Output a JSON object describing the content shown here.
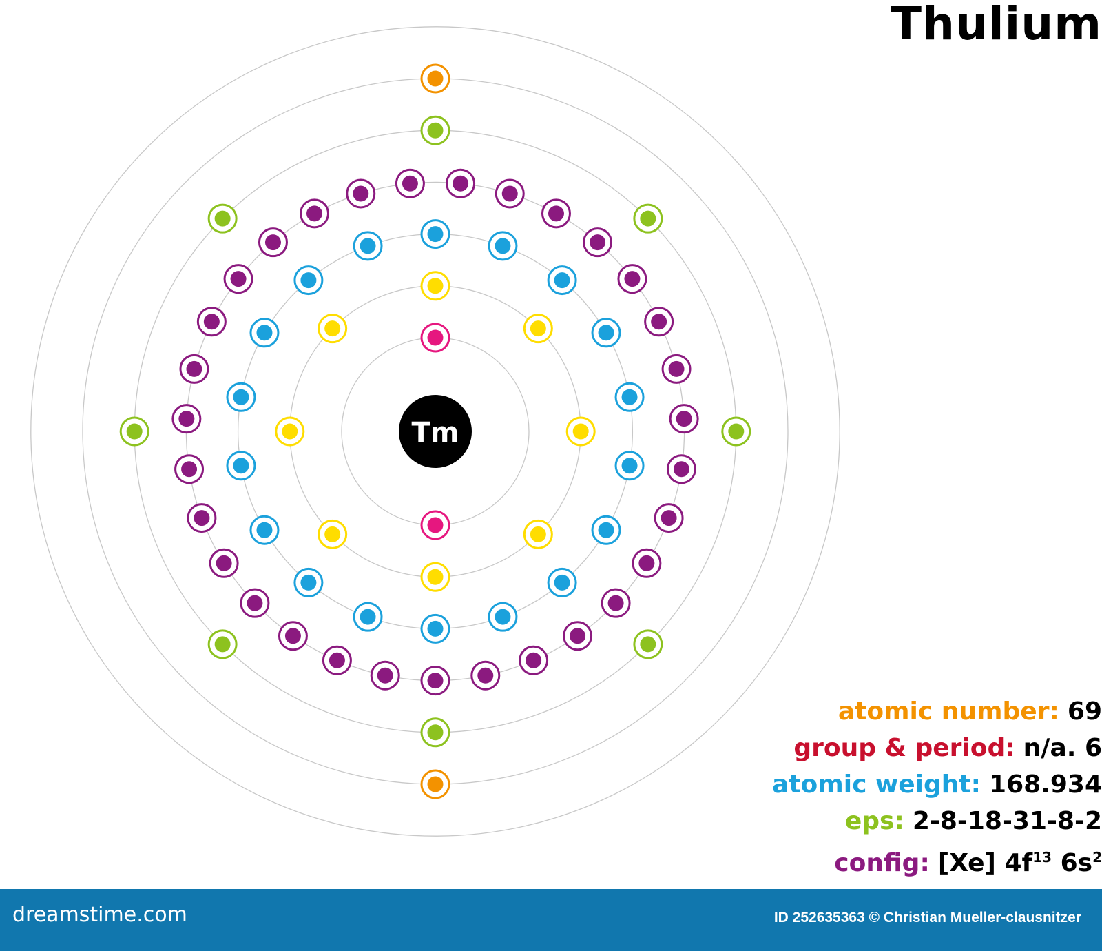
{
  "title": "Thulium",
  "symbol": "Tm",
  "shells": [
    {
      "electrons": 2,
      "color": "#e6177f",
      "start": "top"
    },
    {
      "electrons": 8,
      "color": "#ffdd00",
      "start": "top"
    },
    {
      "electrons": 18,
      "color": "#1ba1dc",
      "start": "top"
    },
    {
      "electrons": 31,
      "color": "#8b1a7f",
      "start": "bottom"
    },
    {
      "electrons": 8,
      "color": "#8dc21f",
      "start": "top"
    },
    {
      "electrons": 2,
      "color": "#f39200",
      "start": "top"
    },
    {
      "electrons": 0,
      "color": "#cccccc",
      "start": "top"
    }
  ],
  "info": {
    "atomic_number": {
      "label": "atomic number:",
      "value": "69",
      "color": "#f39200"
    },
    "group_period": {
      "label": "group & period:",
      "value": "n/a. 6",
      "color": "#c8102e"
    },
    "atomic_weight": {
      "label": "atomic weight:",
      "value": "168.934",
      "color": "#1ba1dc"
    },
    "eps": {
      "label": "eps:",
      "value": "2-8-18-31-8-2",
      "color": "#8dc21f"
    },
    "config": {
      "label": "config:",
      "value": "[Xe] 4f",
      "sup1": "13",
      "value2": " 6s",
      "sup2": "2",
      "color": "#8b1a7f"
    }
  },
  "footer": {
    "brand": "dreamstime.com",
    "credit": "ID 252635363 © Christian Mueller-clausnitzer"
  }
}
